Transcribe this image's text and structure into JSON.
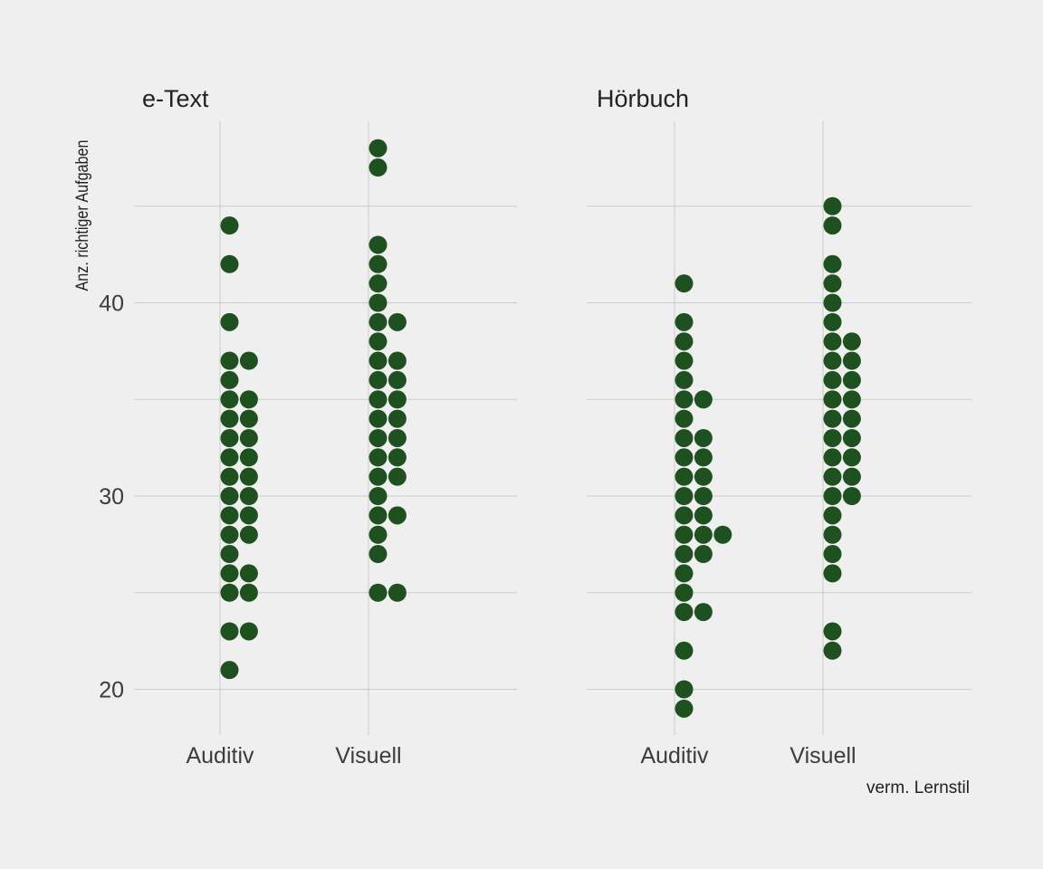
{
  "chart_data": [
    {
      "type": "scatter",
      "title": "e-Text",
      "categories": [
        "Auditiv",
        "Visuell"
      ],
      "ylim": [
        17.5,
        50
      ],
      "y_ticks": [
        20,
        30,
        40
      ],
      "grid": true,
      "series": [
        {
          "category": "Auditiv",
          "points": [
            {
              "y": 44,
              "count": 1
            },
            {
              "y": 42,
              "count": 1
            },
            {
              "y": 39,
              "count": 1
            },
            {
              "y": 37,
              "count": 2
            },
            {
              "y": 36,
              "count": 1
            },
            {
              "y": 35,
              "count": 2
            },
            {
              "y": 34,
              "count": 2
            },
            {
              "y": 33,
              "count": 2
            },
            {
              "y": 32,
              "count": 2
            },
            {
              "y": 31,
              "count": 2
            },
            {
              "y": 30,
              "count": 2
            },
            {
              "y": 29,
              "count": 2
            },
            {
              "y": 28,
              "count": 2
            },
            {
              "y": 27,
              "count": 1
            },
            {
              "y": 26,
              "count": 2
            },
            {
              "y": 25,
              "count": 2
            },
            {
              "y": 23,
              "count": 2
            },
            {
              "y": 21,
              "count": 1
            }
          ]
        },
        {
          "category": "Visuell",
          "points": [
            {
              "y": 48,
              "count": 1
            },
            {
              "y": 47,
              "count": 1
            },
            {
              "y": 43,
              "count": 1
            },
            {
              "y": 42,
              "count": 1
            },
            {
              "y": 41,
              "count": 1
            },
            {
              "y": 40,
              "count": 1
            },
            {
              "y": 39,
              "count": 2
            },
            {
              "y": 38,
              "count": 1
            },
            {
              "y": 37,
              "count": 2
            },
            {
              "y": 36,
              "count": 2
            },
            {
              "y": 35,
              "count": 2
            },
            {
              "y": 34,
              "count": 2
            },
            {
              "y": 33,
              "count": 2
            },
            {
              "y": 32,
              "count": 2
            },
            {
              "y": 31,
              "count": 2
            },
            {
              "y": 30,
              "count": 1
            },
            {
              "y": 29,
              "count": 2
            },
            {
              "y": 28,
              "count": 1
            },
            {
              "y": 27,
              "count": 1
            },
            {
              "y": 25,
              "count": 2
            }
          ]
        }
      ]
    },
    {
      "type": "scatter",
      "title": "Hörbuch",
      "categories": [
        "Auditiv",
        "Visuell"
      ],
      "ylim": [
        17.5,
        50
      ],
      "y_ticks": [
        20,
        30,
        40
      ],
      "grid": true,
      "series": [
        {
          "category": "Auditiv",
          "points": [
            {
              "y": 41,
              "count": 1
            },
            {
              "y": 39,
              "count": 1
            },
            {
              "y": 38,
              "count": 1
            },
            {
              "y": 37,
              "count": 1
            },
            {
              "y": 36,
              "count": 1
            },
            {
              "y": 35,
              "count": 2
            },
            {
              "y": 34,
              "count": 1
            },
            {
              "y": 33,
              "count": 2
            },
            {
              "y": 32,
              "count": 2
            },
            {
              "y": 31,
              "count": 2
            },
            {
              "y": 30,
              "count": 2
            },
            {
              "y": 29,
              "count": 2
            },
            {
              "y": 28,
              "count": 3
            },
            {
              "y": 27,
              "count": 2
            },
            {
              "y": 26,
              "count": 1
            },
            {
              "y": 25,
              "count": 1
            },
            {
              "y": 24,
              "count": 2
            },
            {
              "y": 22,
              "count": 1
            },
            {
              "y": 20,
              "count": 1
            },
            {
              "y": 19,
              "count": 1
            }
          ]
        },
        {
          "category": "Visuell",
          "points": [
            {
              "y": 45,
              "count": 1
            },
            {
              "y": 44,
              "count": 1
            },
            {
              "y": 42,
              "count": 1
            },
            {
              "y": 41,
              "count": 1
            },
            {
              "y": 40,
              "count": 1
            },
            {
              "y": 39,
              "count": 1
            },
            {
              "y": 38,
              "count": 2
            },
            {
              "y": 37,
              "count": 2
            },
            {
              "y": 36,
              "count": 2
            },
            {
              "y": 35,
              "count": 2
            },
            {
              "y": 34,
              "count": 2
            },
            {
              "y": 33,
              "count": 2
            },
            {
              "y": 32,
              "count": 2
            },
            {
              "y": 31,
              "count": 2
            },
            {
              "y": 30,
              "count": 2
            },
            {
              "y": 29,
              "count": 1
            },
            {
              "y": 28,
              "count": 1
            },
            {
              "y": 27,
              "count": 1
            },
            {
              "y": 26,
              "count": 1
            },
            {
              "y": 23,
              "count": 1
            },
            {
              "y": 22,
              "count": 1
            }
          ]
        }
      ]
    }
  ],
  "ylabel": "Anz. richtiger Aufgaben",
  "xlabel": "verm. Lernstil",
  "colors": {
    "background": "#efefef",
    "grid": "#cbcbcb",
    "dot": "#1f5020",
    "text": "#222222",
    "tick_text": "#3c3c3c"
  }
}
